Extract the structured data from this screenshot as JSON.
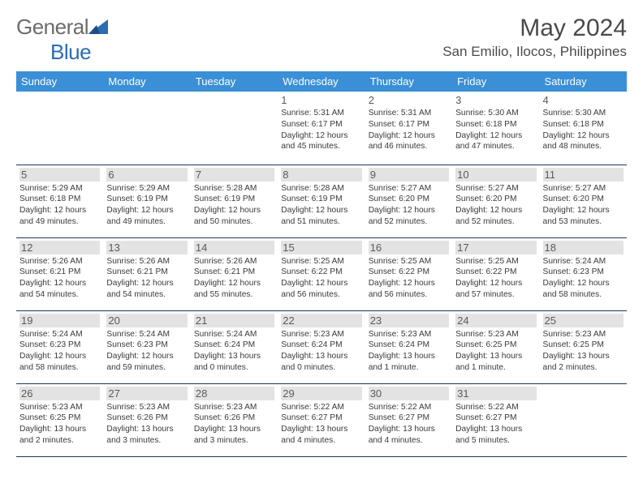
{
  "brand": {
    "part1": "General",
    "part2": "Blue"
  },
  "title": "May 2024",
  "location": "San Emilio, Ilocos, Philippines",
  "colors": {
    "header_bg": "#3a8fd6",
    "border": "#1b365d",
    "shade": "#e3e3e3",
    "text": "#3a3a3a",
    "logo_gray": "#6b6b6b",
    "logo_blue": "#2a6db3"
  },
  "dayNames": [
    "Sunday",
    "Monday",
    "Tuesday",
    "Wednesday",
    "Thursday",
    "Friday",
    "Saturday"
  ],
  "startOffset": 3,
  "days": [
    {
      "n": 1,
      "sr": "5:31 AM",
      "ss": "6:17 PM",
      "dl": "12 hours and 45 minutes."
    },
    {
      "n": 2,
      "sr": "5:31 AM",
      "ss": "6:17 PM",
      "dl": "12 hours and 46 minutes."
    },
    {
      "n": 3,
      "sr": "5:30 AM",
      "ss": "6:18 PM",
      "dl": "12 hours and 47 minutes."
    },
    {
      "n": 4,
      "sr": "5:30 AM",
      "ss": "6:18 PM",
      "dl": "12 hours and 48 minutes."
    },
    {
      "n": 5,
      "sr": "5:29 AM",
      "ss": "6:18 PM",
      "dl": "12 hours and 49 minutes."
    },
    {
      "n": 6,
      "sr": "5:29 AM",
      "ss": "6:19 PM",
      "dl": "12 hours and 49 minutes."
    },
    {
      "n": 7,
      "sr": "5:28 AM",
      "ss": "6:19 PM",
      "dl": "12 hours and 50 minutes."
    },
    {
      "n": 8,
      "sr": "5:28 AM",
      "ss": "6:19 PM",
      "dl": "12 hours and 51 minutes."
    },
    {
      "n": 9,
      "sr": "5:27 AM",
      "ss": "6:20 PM",
      "dl": "12 hours and 52 minutes."
    },
    {
      "n": 10,
      "sr": "5:27 AM",
      "ss": "6:20 PM",
      "dl": "12 hours and 52 minutes."
    },
    {
      "n": 11,
      "sr": "5:27 AM",
      "ss": "6:20 PM",
      "dl": "12 hours and 53 minutes."
    },
    {
      "n": 12,
      "sr": "5:26 AM",
      "ss": "6:21 PM",
      "dl": "12 hours and 54 minutes."
    },
    {
      "n": 13,
      "sr": "5:26 AM",
      "ss": "6:21 PM",
      "dl": "12 hours and 54 minutes."
    },
    {
      "n": 14,
      "sr": "5:26 AM",
      "ss": "6:21 PM",
      "dl": "12 hours and 55 minutes."
    },
    {
      "n": 15,
      "sr": "5:25 AM",
      "ss": "6:22 PM",
      "dl": "12 hours and 56 minutes."
    },
    {
      "n": 16,
      "sr": "5:25 AM",
      "ss": "6:22 PM",
      "dl": "12 hours and 56 minutes."
    },
    {
      "n": 17,
      "sr": "5:25 AM",
      "ss": "6:22 PM",
      "dl": "12 hours and 57 minutes."
    },
    {
      "n": 18,
      "sr": "5:24 AM",
      "ss": "6:23 PM",
      "dl": "12 hours and 58 minutes."
    },
    {
      "n": 19,
      "sr": "5:24 AM",
      "ss": "6:23 PM",
      "dl": "12 hours and 58 minutes."
    },
    {
      "n": 20,
      "sr": "5:24 AM",
      "ss": "6:23 PM",
      "dl": "12 hours and 59 minutes."
    },
    {
      "n": 21,
      "sr": "5:24 AM",
      "ss": "6:24 PM",
      "dl": "13 hours and 0 minutes."
    },
    {
      "n": 22,
      "sr": "5:23 AM",
      "ss": "6:24 PM",
      "dl": "13 hours and 0 minutes."
    },
    {
      "n": 23,
      "sr": "5:23 AM",
      "ss": "6:24 PM",
      "dl": "13 hours and 1 minute."
    },
    {
      "n": 24,
      "sr": "5:23 AM",
      "ss": "6:25 PM",
      "dl": "13 hours and 1 minute."
    },
    {
      "n": 25,
      "sr": "5:23 AM",
      "ss": "6:25 PM",
      "dl": "13 hours and 2 minutes."
    },
    {
      "n": 26,
      "sr": "5:23 AM",
      "ss": "6:25 PM",
      "dl": "13 hours and 2 minutes."
    },
    {
      "n": 27,
      "sr": "5:23 AM",
      "ss": "6:26 PM",
      "dl": "13 hours and 3 minutes."
    },
    {
      "n": 28,
      "sr": "5:23 AM",
      "ss": "6:26 PM",
      "dl": "13 hours and 3 minutes."
    },
    {
      "n": 29,
      "sr": "5:22 AM",
      "ss": "6:27 PM",
      "dl": "13 hours and 4 minutes."
    },
    {
      "n": 30,
      "sr": "5:22 AM",
      "ss": "6:27 PM",
      "dl": "13 hours and 4 minutes."
    },
    {
      "n": 31,
      "sr": "5:22 AM",
      "ss": "6:27 PM",
      "dl": "13 hours and 5 minutes."
    }
  ],
  "labels": {
    "sunrise": "Sunrise: ",
    "sunset": "Sunset: ",
    "daylight": "Daylight: "
  }
}
